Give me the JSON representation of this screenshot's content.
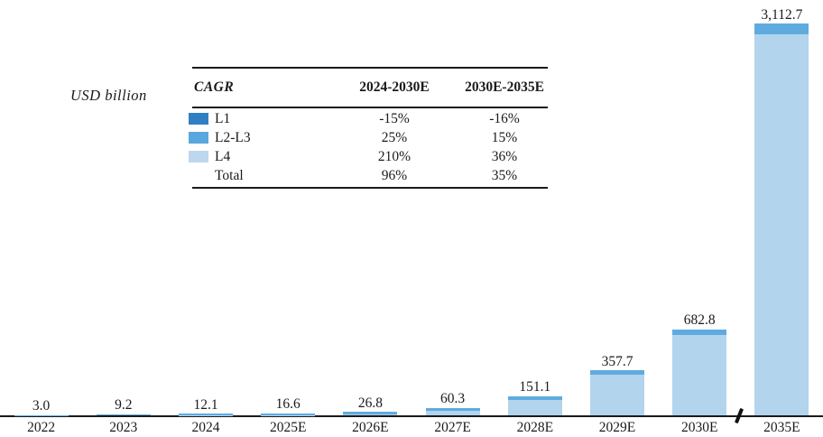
{
  "unit_label": "USD billion",
  "cagr_table": {
    "header": {
      "col0": "CAGR",
      "col1": "2024-2030E",
      "col2": "2030E-2035E"
    },
    "rows": [
      {
        "label": "L1",
        "swatch": "#2f80c3",
        "c1": "-15%",
        "c2": "-16%"
      },
      {
        "label": "L2-L3",
        "swatch": "#5aa7dd",
        "c1": "25%",
        "c2": "15%"
      },
      {
        "label": "L4",
        "swatch": "#bdd8ee",
        "c1": "210%",
        "c2": "36%"
      },
      {
        "label": "Total",
        "swatch": null,
        "c1": "96%",
        "c2": "35%"
      }
    ]
  },
  "chart_data": {
    "type": "bar",
    "stacked": true,
    "title": "",
    "ylabel": "USD billion",
    "xlabel": "",
    "gridlines": false,
    "y_axis_shown": false,
    "categories": [
      "2022",
      "2023",
      "2024",
      "2025E",
      "2026E",
      "2027E",
      "2028E",
      "2029E",
      "2030E",
      "2035E"
    ],
    "totals": [
      3.0,
      9.2,
      12.1,
      16.6,
      26.8,
      60.3,
      151.1,
      357.7,
      682.8,
      3112.7
    ],
    "total_labels": [
      "3.0",
      "9.2",
      "12.1",
      "16.6",
      "26.8",
      "60.3",
      "151.1",
      "357.7",
      "682.8",
      "3,112.7"
    ],
    "stack_order_bottom_to_top": [
      "L4",
      "L2-L3",
      "L1"
    ],
    "series": [
      {
        "name": "L4",
        "color": "#b3d4ed",
        "values": [
          0.0,
          0.2,
          0.6,
          2.4,
          9.2,
          38.5,
          123.9,
          323.9,
          640.6,
          3028.1
        ],
        "estimated_from_pixels": true
      },
      {
        "name": "L2-L3",
        "color": "#5fabe0",
        "values": [
          2.8,
          8.5,
          11.0,
          13.8,
          17.2,
          21.5,
          26.9,
          33.6,
          42.0,
          84.5
        ],
        "estimated_from_pixels": true
      },
      {
        "name": "L1",
        "color": "#2f80c3",
        "values": [
          0.2,
          0.5,
          0.5,
          0.4,
          0.4,
          0.3,
          0.3,
          0.2,
          0.2,
          0.1
        ],
        "estimated_from_pixels": true
      }
    ],
    "axis_break_between": [
      "2030E",
      "2035E"
    ],
    "ylim": [
      0,
      3200
    ]
  }
}
